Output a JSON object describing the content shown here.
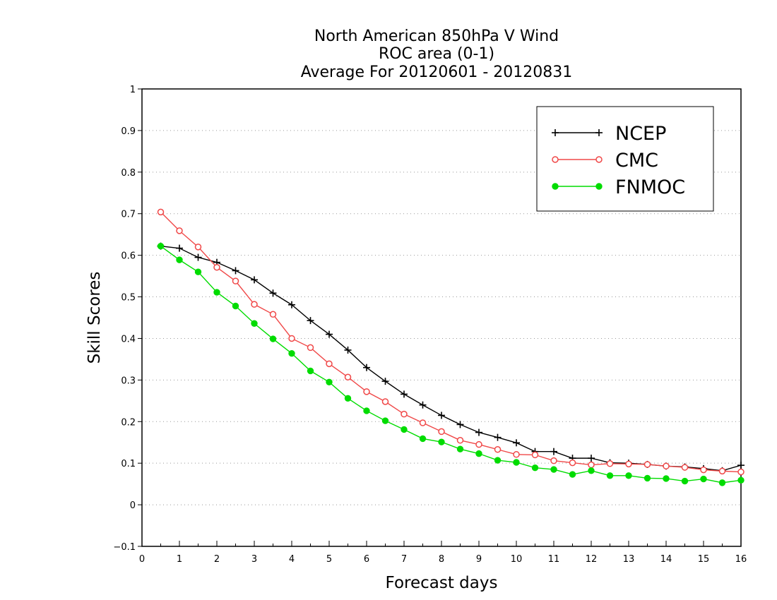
{
  "chart_data": {
    "type": "line",
    "title": [
      "North American 850hPa V Wind",
      "ROC area (0-1)",
      "Average For 20120601 - 20120831"
    ],
    "xlabel": "Forecast days",
    "ylabel": "Skill Scores",
    "xlim": [
      0,
      16
    ],
    "ylim": [
      -0.1,
      1
    ],
    "xticks": [
      0,
      1,
      2,
      3,
      4,
      5,
      6,
      7,
      8,
      9,
      10,
      11,
      12,
      13,
      14,
      15,
      16
    ],
    "xtick_labels": [
      "0",
      "1",
      "2",
      "3",
      "4",
      "5",
      "6",
      "7",
      "8",
      "9",
      "10",
      "11",
      "12",
      "13",
      "14",
      "15",
      "16"
    ],
    "yticks": [
      -0.1,
      0,
      0.1,
      0.2,
      0.3,
      0.4,
      0.5,
      0.6,
      0.7,
      0.8,
      0.9,
      1
    ],
    "ytick_labels": [
      "−0.1",
      "0",
      "0.1",
      "0.2",
      "0.3",
      "0.4",
      "0.5",
      "0.6",
      "0.7",
      "0.8",
      "0.9",
      "1"
    ],
    "grid": "horizontal-dotted",
    "legend_position": "top-right",
    "x": [
      0.5,
      1,
      1.5,
      2,
      2.5,
      3,
      3.5,
      4,
      4.5,
      5,
      5.5,
      6,
      6.5,
      7,
      7.5,
      8,
      8.5,
      9,
      9.5,
      10,
      10.5,
      11,
      11.5,
      12,
      12.5,
      13,
      13.5,
      14,
      14.5,
      15,
      15.5,
      16
    ],
    "series": [
      {
        "name": "NCEP",
        "color": "#000000",
        "marker": "plus",
        "values": [
          0.622,
          0.617,
          0.595,
          0.583,
          0.563,
          0.541,
          0.509,
          0.481,
          0.443,
          0.41,
          0.372,
          0.33,
          0.297,
          0.266,
          0.24,
          0.215,
          0.193,
          0.174,
          0.162,
          0.149,
          0.128,
          0.128,
          0.112,
          0.112,
          0.101,
          0.1,
          0.097,
          0.093,
          0.091,
          0.087,
          0.082,
          0.095
        ]
      },
      {
        "name": "CMC",
        "color": "#f04848",
        "marker": "open-circle",
        "values": [
          0.704,
          0.659,
          0.62,
          0.571,
          0.538,
          0.482,
          0.458,
          0.4,
          0.378,
          0.339,
          0.307,
          0.272,
          0.248,
          0.218,
          0.197,
          0.176,
          0.155,
          0.145,
          0.133,
          0.121,
          0.12,
          0.106,
          0.101,
          0.096,
          0.099,
          0.098,
          0.097,
          0.093,
          0.09,
          0.084,
          0.081,
          0.079
        ]
      },
      {
        "name": "FNMOC",
        "color": "#00dc00",
        "marker": "filled-circle",
        "values": [
          0.622,
          0.589,
          0.56,
          0.511,
          0.478,
          0.436,
          0.399,
          0.364,
          0.322,
          0.295,
          0.256,
          0.226,
          0.202,
          0.181,
          0.159,
          0.151,
          0.134,
          0.123,
          0.107,
          0.102,
          0.089,
          0.085,
          0.073,
          0.082,
          0.07,
          0.07,
          0.064,
          0.063,
          0.057,
          0.062,
          0.053,
          0.059
        ]
      }
    ]
  }
}
